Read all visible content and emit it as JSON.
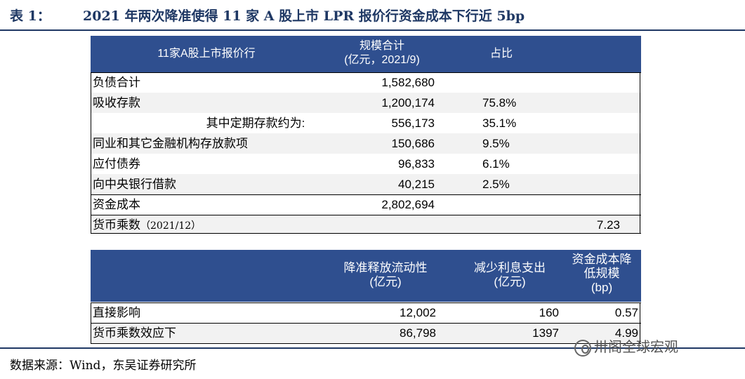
{
  "title": {
    "label": "表 1：",
    "text": "2021 年两次降准使得 11 家 A 股上市 LPR 报价行资金成本下行近 5bp"
  },
  "table1": {
    "headers": {
      "c1": "11家A股上市报价行",
      "c2_line1": "规模合计",
      "c2_line2": "(亿元，2021/9)",
      "c3": "占比"
    },
    "rows": [
      {
        "label": "负债合计",
        "value": "1,582,680",
        "pct": ""
      },
      {
        "label": "吸收存款",
        "value": "1,200,174",
        "pct": "75.8%"
      },
      {
        "label": "其中定期存款约为:",
        "value": "556,173",
        "pct": "35.1%"
      },
      {
        "label": "同业和其它金融机构存放款项",
        "value": "150,686",
        "pct": "9.5%"
      },
      {
        "label": "应付债券",
        "value": "96,833",
        "pct": "6.1%"
      },
      {
        "label": "向中央银行借款",
        "value": "40,215",
        "pct": "2.5%"
      },
      {
        "label": "资金成本",
        "value": "2,802,694",
        "pct": ""
      }
    ],
    "multiplier": {
      "label": "货币乘数",
      "note": "（2021/12）",
      "value": "7.23"
    }
  },
  "table2": {
    "headers": {
      "c1_line1": "降准释放流动性",
      "c1_line2": "(亿元)",
      "c2_line1": "减少利息支出",
      "c2_line2": "(亿元)",
      "c3_line1": "资金成本降",
      "c3_line2": "低规模",
      "c3_line3": "(bp)"
    },
    "rows": [
      {
        "label": "直接影响",
        "a": "12,002",
        "b": "160",
        "c": "0.57"
      },
      {
        "label": "货币乘数效应下",
        "a": "86,798",
        "b": "1397",
        "c": "4.99"
      }
    ]
  },
  "source": "数据来源：Wind，东吴证券研究所",
  "watermark": "卅阁全球宏观"
}
